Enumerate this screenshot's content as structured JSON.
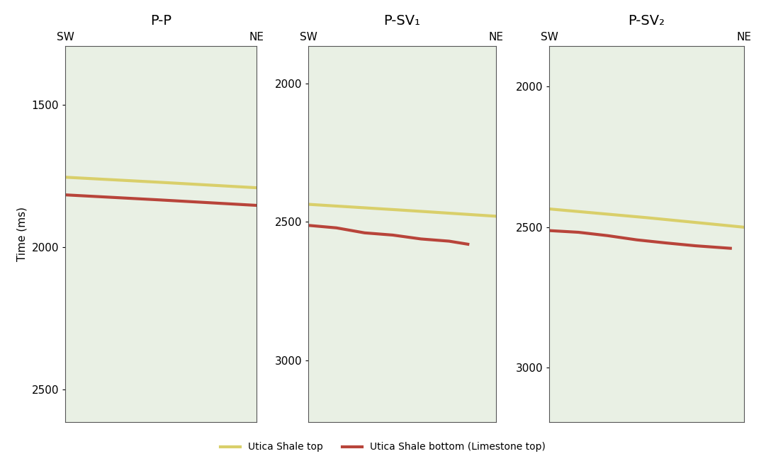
{
  "chart_data": [
    {
      "type": "line",
      "title": "P-P",
      "y_label": "Time (ms)",
      "xlim": [
        0,
        1
      ],
      "xticks": [
        {
          "value": 0,
          "label": "SW"
        },
        {
          "value": 1,
          "label": "NE"
        }
      ],
      "ylim": [
        2614,
        1293
      ],
      "yticks": [
        1500,
        2000,
        2500
      ],
      "legend": "lower center",
      "series": [
        {
          "name": "Utica Shale top",
          "color": "#d9cf6a",
          "x": [
            0,
            0.5,
            1
          ],
          "values": [
            1754,
            1772,
            1791
          ]
        },
        {
          "name": "Utica Shale bottom (Limestone top)",
          "color": "#b8443a",
          "x": [
            0,
            0.5,
            1
          ],
          "values": [
            1816,
            1834,
            1853
          ]
        }
      ]
    },
    {
      "type": "line",
      "title": "P-SV₁",
      "xlim": [
        0,
        1
      ],
      "xticks": [
        {
          "value": 0,
          "label": "SW"
        },
        {
          "value": 1,
          "label": "NE"
        }
      ],
      "ylim": [
        3222,
        1866
      ],
      "yticks": [
        2000,
        2500,
        3000
      ],
      "series": [
        {
          "name": "Utica Shale top",
          "color": "#d9cf6a",
          "x": [
            0,
            0.5,
            1
          ],
          "values": [
            2437,
            2458,
            2480
          ]
        },
        {
          "name": "Utica Shale bottom (Limestone top)",
          "color": "#b8443a",
          "x": [
            0,
            0.15,
            0.3,
            0.45,
            0.6,
            0.75,
            0.85
          ],
          "values": [
            2513,
            2522,
            2540,
            2548,
            2562,
            2570,
            2581
          ]
        }
      ]
    },
    {
      "type": "line",
      "title": "P-SV₂",
      "xlim": [
        0,
        1
      ],
      "xticks": [
        {
          "value": 0,
          "label": "SW"
        },
        {
          "value": 1,
          "label": "NE"
        }
      ],
      "ylim": [
        3192,
        1856
      ],
      "yticks": [
        2000,
        2500,
        3000
      ],
      "series": [
        {
          "name": "Utica Shale top",
          "color": "#d9cf6a",
          "x": [
            0,
            0.5,
            1
          ],
          "values": [
            2435,
            2466,
            2500
          ]
        },
        {
          "name": "Utica Shale bottom (Limestone top)",
          "color": "#b8443a",
          "x": [
            0,
            0.15,
            0.3,
            0.45,
            0.6,
            0.75,
            0.93
          ],
          "values": [
            2512,
            2518,
            2530,
            2545,
            2556,
            2566,
            2575
          ]
        }
      ]
    }
  ]
}
